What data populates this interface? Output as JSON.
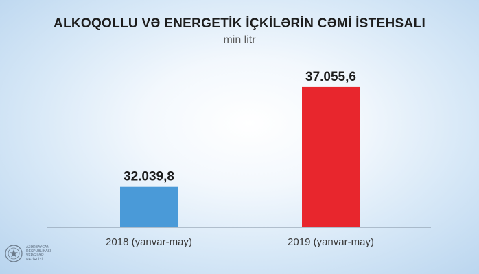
{
  "chart_data": {
    "type": "bar",
    "title": "ALKOQOLLU VƏ ENERGETİK İÇKİLƏRİN CƏMİ İSTEHSALI",
    "subtitle": "min litr",
    "categories": [
      "2018 (yanvar-may)",
      "2019 (yanvar-may)"
    ],
    "values": [
      32039.8,
      37055.6
    ],
    "value_labels": [
      "32.039,8",
      "37.055,6"
    ],
    "bar_colors": [
      "#4a9ad8",
      "#e8262d"
    ],
    "ylim": [
      30000,
      37500
    ],
    "grid": false,
    "legend": "none"
  },
  "logo": {
    "text": "AZƏRBAYCAN RESPUBLİKASI VERGİLƏR NAZİRLİYİ"
  },
  "colors": {
    "axis": "#7f8fa0",
    "title": "#1d1d1d"
  }
}
